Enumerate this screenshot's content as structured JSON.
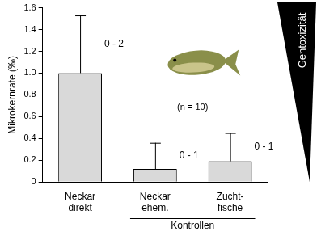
{
  "chart_data": {
    "type": "bar",
    "y_label": "Mikrokernrate (‰)",
    "categories": [
      [
        "Neckar",
        "direkt"
      ],
      [
        "Neckar",
        "ehem."
      ],
      [
        "Zucht-",
        "fische"
      ]
    ],
    "values": [
      1.0,
      0.12,
      0.19
    ],
    "errors": [
      0.53,
      0.24,
      0.26
    ],
    "range_labels": [
      "0 - 2",
      "0 - 1",
      "0 - 1"
    ],
    "color": "#d9d9d9",
    "ylim": [
      0,
      1.6
    ],
    "yticks": [
      0,
      0.2,
      0.4,
      0.6,
      0.8,
      {
        "value": 1,
        "label": "1.0"
      },
      1.2,
      1.4,
      1.6
    ],
    "grid": false,
    "annotations": [
      "(n = 10)"
    ],
    "group": {
      "label": "Kontrollen",
      "members": [
        [
          "Neckar",
          "ehem."
        ],
        [
          "Zucht-",
          "fische"
        ]
      ]
    },
    "scale_label": "Gentoxizität"
  }
}
